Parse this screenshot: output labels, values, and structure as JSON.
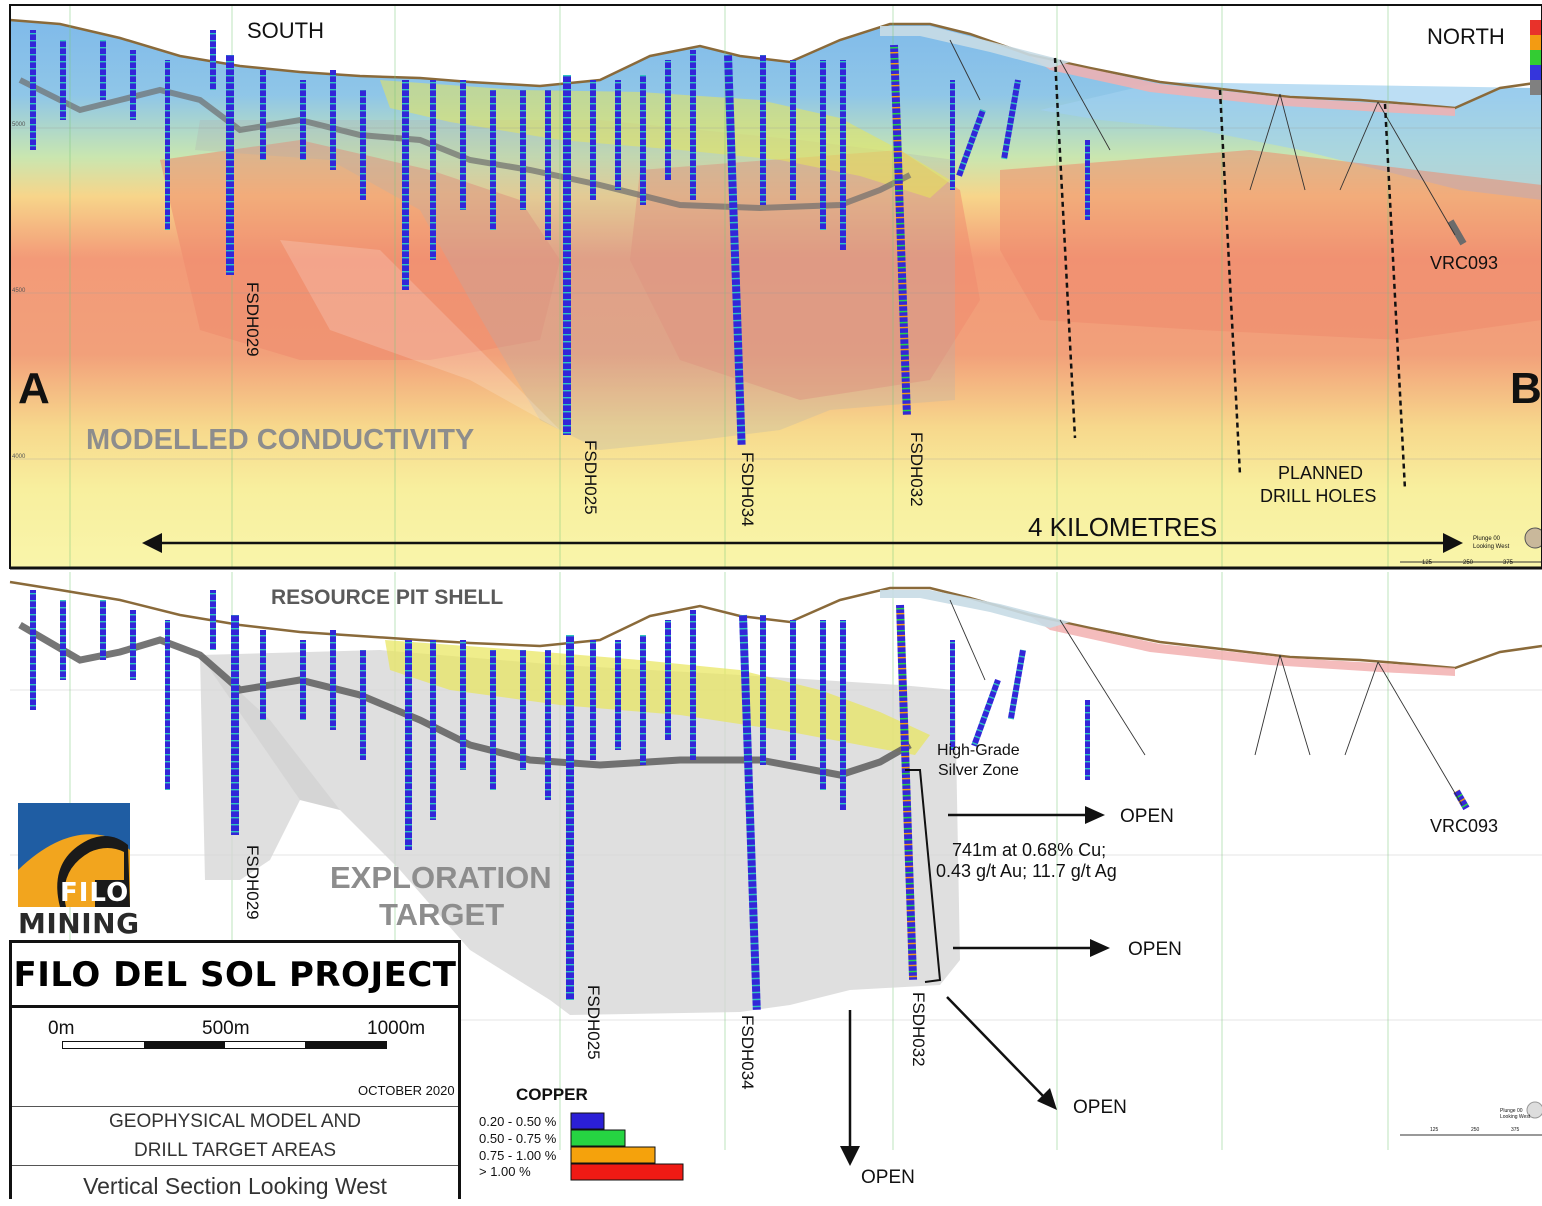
{
  "colors": {
    "conductive_high": "#f08a6e",
    "conductive_low": "#f7ef9a",
    "resistive": "#7db8ea",
    "exploration_target": "#d9d9d9",
    "silver_zone": "#e6e65c",
    "drill_trace": "#3a3ad8"
  },
  "top_panel": {
    "south_label": "SOUTH",
    "north_label": "NORTH",
    "point_a": "A",
    "point_b": "B",
    "model_label": "MODELLED CONDUCTIVITY",
    "distance_label": "4 KILOMETRES",
    "planned_label_line1": "PLANNED",
    "planned_label_line2": "DRILL HOLES",
    "holes": [
      "FSDH029",
      "FSDH025",
      "FSDH034",
      "FSDH032",
      "VRC093"
    ],
    "elevation_ticks": [
      "5000",
      "4500",
      "4000"
    ],
    "view_note_line1": "Plunge 00",
    "view_note_line2": "Looking West",
    "scale_ticks": [
      "125",
      "250",
      "375"
    ]
  },
  "bottom_panel": {
    "pit_shell_label": "RESOURCE PIT SHELL",
    "target_label_line1": "EXPLORATION",
    "target_label_line2": "TARGET",
    "silver_zone_line1": "High-Grade",
    "silver_zone_line2": "Silver Zone",
    "intercept_line1": "741m at 0.68% Cu;",
    "intercept_line2": "0.43 g/t Au; 11.7 g/t Ag",
    "open_label": "OPEN",
    "holes": [
      "FSDH029",
      "FSDH025",
      "FSDH034",
      "FSDH032",
      "VRC093"
    ],
    "view_note_line1": "Plunge 00",
    "view_note_line2": "Looking West",
    "scale_ticks": [
      "125",
      "250",
      "375"
    ]
  },
  "logo": {
    "line1": "FILO",
    "line2": "MINING"
  },
  "title_block": {
    "title": "FILO DEL SOL PROJECT",
    "scale_0": "0m",
    "scale_500": "500m",
    "scale_1000": "1000m",
    "date": "OCTOBER 2020",
    "description_line1": "GEOPHYSICAL MODEL AND",
    "description_line2": "DRILL TARGET AREAS",
    "view": "Vertical Section Looking West"
  },
  "legend": {
    "title": "COPPER",
    "items": [
      {
        "label": "0.20 - 0.50 %",
        "color": "#2b1fd6"
      },
      {
        "label": "0.50 - 0.75 %",
        "color": "#26d442"
      },
      {
        "label": "0.75 - 1.00 %",
        "color": "#f5a20c"
      },
      {
        "label": "> 1.00 %",
        "color": "#ef1a14"
      }
    ]
  }
}
